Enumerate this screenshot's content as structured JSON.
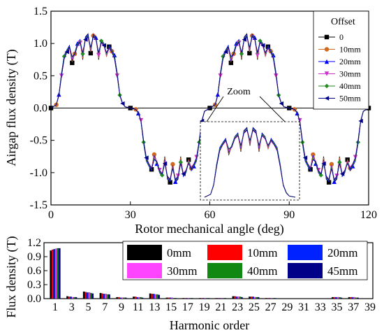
{
  "chart_data": [
    {
      "type": "line",
      "xlabel": "Rotor mechanical angle (deg)",
      "ylabel": "Airgap flux density (T)",
      "xlim": [
        0,
        120
      ],
      "ylim": [
        -1.5,
        1.5
      ],
      "xticks": [
        "0",
        "30",
        "60",
        "90",
        "120"
      ],
      "yticks": [
        "-1.5",
        "-1.0",
        "-0.5",
        "0.0",
        "0.5",
        "1.0",
        "1.5"
      ],
      "legend_title": "Offset",
      "legend_position": "top-right",
      "annotation": "Zoom",
      "x": [
        0,
        2,
        3,
        4,
        5,
        6,
        7,
        8,
        9,
        10,
        11,
        12,
        13,
        14,
        15,
        16,
        17,
        18,
        19,
        20,
        21,
        22,
        23,
        24,
        25,
        26,
        27,
        28,
        30,
        32,
        33,
        34,
        35,
        36,
        37,
        38,
        39,
        40,
        41,
        42,
        43,
        44,
        45,
        46,
        47,
        48,
        49,
        50,
        51,
        52,
        53,
        54,
        55,
        56,
        57,
        58,
        60,
        62,
        63,
        64,
        65,
        66,
        67,
        68,
        69,
        70,
        71,
        72,
        73,
        74,
        75,
        76,
        77,
        78,
        79,
        80,
        81,
        82,
        83,
        84,
        85,
        86,
        87,
        88,
        90,
        92,
        93,
        94,
        95,
        96,
        97,
        98,
        99,
        100,
        101,
        102,
        103,
        104,
        105,
        106,
        107,
        108,
        109,
        110,
        111,
        112,
        113,
        114,
        115,
        116,
        117,
        118,
        120
      ],
      "series": [
        {
          "name": "0",
          "color": "#000000",
          "marker": "square",
          "values": [
            0.0,
            0.05,
            0.2,
            0.55,
            0.8,
            0.9,
            0.95,
            0.7,
            0.85,
            1.0,
            1.05,
            0.75,
            1.1,
            1.15,
            0.85,
            1.15,
            1.1,
            0.75,
            1.05,
            1.0,
            0.8,
            0.95,
            0.9,
            0.8,
            0.55,
            0.2,
            0.08,
            0.02,
            0.0,
            -0.02,
            -0.08,
            -0.2,
            -0.55,
            -0.8,
            -0.9,
            -0.95,
            -0.7,
            -0.85,
            -1.0,
            -1.05,
            -0.75,
            -1.1,
            -1.15,
            -0.85,
            -1.15,
            -1.1,
            -0.75,
            -1.05,
            -1.0,
            -0.8,
            -0.95,
            -0.9,
            -0.8,
            -0.55,
            -0.2,
            -0.05,
            0.0,
            0.05,
            0.2,
            0.55,
            0.8,
            0.9,
            0.95,
            0.7,
            0.85,
            1.0,
            1.05,
            0.75,
            1.1,
            1.15,
            0.85,
            1.15,
            1.1,
            0.75,
            1.05,
            1.0,
            0.8,
            0.95,
            0.9,
            0.8,
            0.55,
            0.2,
            0.08,
            0.02,
            0.0,
            -0.02,
            -0.08,
            -0.2,
            -0.55,
            -0.8,
            -0.9,
            -0.95,
            -0.7,
            -0.85,
            -1.0,
            -1.05,
            -0.75,
            -1.1,
            -1.15,
            -0.85,
            -1.15,
            -1.1,
            -0.75,
            -1.05,
            -1.0,
            -0.8,
            -0.95,
            -0.9,
            -0.8,
            -0.55,
            -0.2,
            -0.05,
            0.0
          ]
        },
        {
          "name": "10mm",
          "color": "#d2691e",
          "marker": "circle",
          "values": [
            0.0,
            0.05,
            0.2,
            0.52,
            0.78,
            0.88,
            0.93,
            0.72,
            0.84,
            0.98,
            1.03,
            0.77,
            1.08,
            1.12,
            0.87,
            1.12,
            1.08,
            0.77,
            1.03,
            0.98,
            0.8,
            0.93,
            0.88,
            0.78,
            0.52,
            0.2,
            0.08,
            0.02,
            0.0,
            -0.02,
            -0.08,
            -0.2,
            -0.52,
            -0.78,
            -0.88,
            -0.93,
            -0.72,
            -0.84,
            -0.98,
            -1.03,
            -0.77,
            -1.08,
            -1.12,
            -0.87,
            -1.12,
            -1.08,
            -0.77,
            -1.03,
            -0.98,
            -0.8,
            -0.93,
            -0.88,
            -0.78,
            -0.52,
            -0.2,
            -0.05,
            0.0,
            0.05,
            0.2,
            0.52,
            0.78,
            0.88,
            0.93,
            0.72,
            0.84,
            0.98,
            1.03,
            0.77,
            1.08,
            1.12,
            0.87,
            1.12,
            1.08,
            0.77,
            1.03,
            0.98,
            0.8,
            0.93,
            0.88,
            0.78,
            0.52,
            0.2,
            0.08,
            0.02,
            0.0,
            -0.02,
            -0.08,
            -0.2,
            -0.52,
            -0.78,
            -0.88,
            -0.93,
            -0.72,
            -0.84,
            -0.98,
            -1.03,
            -0.77,
            -1.08,
            -1.12,
            -0.87,
            -1.12,
            -1.08,
            -0.77,
            -1.03,
            -0.98,
            -0.8,
            -0.93,
            -0.88,
            -0.78,
            -0.52,
            -0.2,
            -0.05,
            0.0
          ]
        },
        {
          "name": "20mm",
          "color": "#0000ff",
          "marker": "triangle-up",
          "values": [
            0.0,
            0.05,
            0.21,
            0.54,
            0.82,
            0.9,
            0.97,
            0.74,
            0.86,
            1.0,
            1.06,
            0.8,
            1.09,
            1.14,
            0.89,
            1.14,
            1.09,
            0.8,
            1.06,
            1.0,
            0.82,
            0.97,
            0.9,
            0.82,
            0.54,
            0.21,
            0.08,
            0.02,
            0.0,
            -0.02,
            -0.08,
            -0.21,
            -0.54,
            -0.82,
            -0.9,
            -0.97,
            -0.74,
            -0.86,
            -1.0,
            -1.06,
            -0.8,
            -1.09,
            -1.14,
            -0.89,
            -1.14,
            -1.09,
            -0.8,
            -1.06,
            -1.0,
            -0.82,
            -0.97,
            -0.9,
            -0.82,
            -0.54,
            -0.21,
            -0.05,
            0.0,
            0.05,
            0.21,
            0.54,
            0.82,
            0.9,
            0.97,
            0.74,
            0.86,
            1.0,
            1.06,
            0.8,
            1.09,
            1.14,
            0.89,
            1.14,
            1.09,
            0.8,
            1.06,
            1.0,
            0.82,
            0.97,
            0.9,
            0.82,
            0.54,
            0.21,
            0.08,
            0.02,
            0.0,
            -0.02,
            -0.08,
            -0.21,
            -0.54,
            -0.82,
            -0.9,
            -0.97,
            -0.74,
            -0.86,
            -1.0,
            -1.06,
            -0.8,
            -1.09,
            -1.14,
            -0.89,
            -1.14,
            -1.09,
            -0.8,
            -1.06,
            -1.0,
            -0.82,
            -0.97,
            -0.9,
            -0.82,
            -0.54,
            -0.21,
            -0.05,
            0.0
          ]
        },
        {
          "name": "30mm",
          "color": "#cc33cc",
          "marker": "triangle-down",
          "values": [
            0.0,
            0.05,
            0.19,
            0.5,
            0.76,
            0.86,
            0.92,
            0.76,
            0.82,
            0.96,
            1.01,
            0.82,
            1.05,
            1.1,
            0.9,
            1.1,
            1.05,
            0.82,
            1.01,
            0.96,
            0.82,
            0.92,
            0.86,
            0.76,
            0.5,
            0.19,
            0.07,
            0.02,
            0.0,
            -0.02,
            -0.07,
            -0.19,
            -0.5,
            -0.76,
            -0.86,
            -0.92,
            -0.76,
            -0.82,
            -0.96,
            -1.01,
            -0.82,
            -1.05,
            -1.1,
            -0.9,
            -1.1,
            -1.05,
            -0.82,
            -1.01,
            -0.96,
            -0.82,
            -0.92,
            -0.86,
            -0.76,
            -0.5,
            -0.19,
            -0.05,
            0.0,
            0.05,
            0.19,
            0.5,
            0.76,
            0.86,
            0.92,
            0.76,
            0.82,
            0.96,
            1.01,
            0.82,
            1.05,
            1.1,
            0.9,
            1.1,
            1.05,
            0.82,
            1.01,
            0.96,
            0.82,
            0.92,
            0.86,
            0.76,
            0.5,
            0.19,
            0.07,
            0.02,
            0.0,
            -0.02,
            -0.07,
            -0.19,
            -0.5,
            -0.76,
            -0.86,
            -0.92,
            -0.76,
            -0.82,
            -0.96,
            -1.01,
            -0.82,
            -1.05,
            -1.1,
            -0.9,
            -1.1,
            -1.05,
            -0.82,
            -1.01,
            -0.96,
            -0.82,
            -0.92,
            -0.86,
            -0.76,
            -0.5,
            -0.19,
            -0.05,
            0.0
          ]
        },
        {
          "name": "40mm",
          "color": "#228b22",
          "marker": "diamond",
          "values": [
            0.0,
            0.05,
            0.2,
            0.53,
            0.8,
            0.89,
            0.95,
            0.78,
            0.85,
            0.99,
            1.04,
            0.84,
            1.07,
            1.12,
            0.92,
            1.12,
            1.07,
            0.84,
            1.04,
            0.99,
            0.84,
            0.95,
            0.89,
            0.8,
            0.53,
            0.2,
            0.08,
            0.02,
            0.0,
            -0.02,
            -0.08,
            -0.2,
            -0.53,
            -0.8,
            -0.89,
            -0.95,
            -0.78,
            -0.85,
            -0.99,
            -1.04,
            -0.84,
            -1.07,
            -1.12,
            -0.92,
            -1.12,
            -1.07,
            -0.84,
            -1.04,
            -0.99,
            -0.84,
            -0.95,
            -0.89,
            -0.8,
            -0.53,
            -0.2,
            -0.05,
            0.0,
            0.05,
            0.2,
            0.53,
            0.8,
            0.89,
            0.95,
            0.78,
            0.85,
            0.99,
            1.04,
            0.84,
            1.07,
            1.12,
            0.92,
            1.12,
            1.07,
            0.84,
            1.04,
            0.99,
            0.84,
            0.95,
            0.89,
            0.8,
            0.53,
            0.2,
            0.08,
            0.02,
            0.0,
            -0.02,
            -0.08,
            -0.2,
            -0.53,
            -0.8,
            -0.89,
            -0.95,
            -0.78,
            -0.85,
            -0.99,
            -1.04,
            -0.84,
            -1.07,
            -1.12,
            -0.92,
            -1.12,
            -1.07,
            -0.84,
            -1.04,
            -0.99,
            -0.84,
            -0.95,
            -0.89,
            -0.8,
            -0.53,
            -0.2,
            -0.05,
            0.0
          ]
        },
        {
          "name": "50mm",
          "color": "#00008b",
          "marker": "triangle-left",
          "values": [
            0.0,
            0.05,
            0.2,
            0.51,
            0.77,
            0.87,
            0.94,
            0.8,
            0.83,
            0.97,
            1.02,
            0.86,
            1.06,
            1.11,
            0.94,
            1.11,
            1.06,
            0.86,
            1.02,
            0.97,
            0.86,
            0.94,
            0.87,
            0.77,
            0.51,
            0.2,
            0.07,
            0.02,
            0.0,
            -0.02,
            -0.07,
            -0.2,
            -0.51,
            -0.77,
            -0.87,
            -0.94,
            -0.8,
            -0.83,
            -0.97,
            -1.02,
            -0.86,
            -1.06,
            -1.11,
            -0.94,
            -1.11,
            -1.06,
            -0.86,
            -1.02,
            -0.97,
            -0.86,
            -0.94,
            -0.87,
            -0.77,
            -0.51,
            -0.2,
            -0.05,
            0.0,
            0.05,
            0.2,
            0.51,
            0.77,
            0.87,
            0.94,
            0.8,
            0.83,
            0.97,
            1.02,
            0.86,
            1.06,
            1.11,
            0.94,
            1.11,
            1.06,
            0.86,
            1.02,
            0.97,
            0.86,
            0.94,
            0.87,
            0.77,
            0.51,
            0.2,
            0.07,
            0.02,
            0.0,
            -0.02,
            -0.07,
            -0.2,
            -0.51,
            -0.77,
            -0.87,
            -0.94,
            -0.8,
            -0.83,
            -0.97,
            -1.02,
            -0.86,
            -1.06,
            -1.11,
            -0.94,
            -1.11,
            -1.06,
            -0.86,
            -1.02,
            -0.97,
            -0.86,
            -0.94,
            -0.87,
            -0.77,
            -0.51,
            -0.2,
            -0.05,
            0.0
          ]
        }
      ]
    },
    {
      "type": "bar",
      "xlabel": "Harmonic order",
      "ylabel": "Flux density (T)",
      "ylim": [
        0,
        1.2
      ],
      "yticks": [
        "0.0",
        "0.3",
        "0.6",
        "0.9",
        "1.2"
      ],
      "legend_position": "top-right",
      "categories": [
        "1",
        "3",
        "5",
        "7",
        "9",
        "11",
        "13",
        "15",
        "17",
        "19",
        "21",
        "23",
        "25",
        "27",
        "29",
        "31",
        "33",
        "35",
        "37",
        "39"
      ],
      "series": [
        {
          "name": "0mm",
          "color": "#000000",
          "values": [
            1.03,
            0.05,
            0.15,
            0.12,
            0.03,
            0.04,
            0.11,
            0.02,
            0.01,
            0.01,
            0.01,
            0.05,
            0.04,
            0.01,
            0.0,
            0.0,
            0.0,
            0.03,
            0.03,
            0.0
          ]
        },
        {
          "name": "10mm",
          "color": "#ff0000",
          "values": [
            1.05,
            0.04,
            0.14,
            0.11,
            0.03,
            0.04,
            0.1,
            0.02,
            0.01,
            0.01,
            0.01,
            0.05,
            0.04,
            0.01,
            0.0,
            0.0,
            0.0,
            0.03,
            0.03,
            0.0
          ]
        },
        {
          "name": "20mm",
          "color": "#0022ff",
          "values": [
            1.06,
            0.04,
            0.13,
            0.1,
            0.02,
            0.03,
            0.1,
            0.02,
            0.01,
            0.01,
            0.01,
            0.04,
            0.04,
            0.01,
            0.0,
            0.0,
            0.0,
            0.03,
            0.03,
            0.0
          ]
        },
        {
          "name": "30mm",
          "color": "#ff44ff",
          "values": [
            1.07,
            0.03,
            0.13,
            0.1,
            0.02,
            0.03,
            0.09,
            0.02,
            0.01,
            0.01,
            0.01,
            0.04,
            0.03,
            0.01,
            0.0,
            0.0,
            0.0,
            0.03,
            0.03,
            0.0
          ]
        },
        {
          "name": "40mm",
          "color": "#118811",
          "values": [
            1.08,
            0.03,
            0.12,
            0.09,
            0.02,
            0.03,
            0.09,
            0.01,
            0.01,
            0.01,
            0.01,
            0.04,
            0.03,
            0.01,
            0.0,
            0.0,
            0.0,
            0.03,
            0.02,
            0.0
          ]
        },
        {
          "name": "45mm",
          "color": "#000088",
          "values": [
            1.08,
            0.03,
            0.11,
            0.09,
            0.02,
            0.02,
            0.08,
            0.01,
            0.01,
            0.01,
            0.01,
            0.03,
            0.03,
            0.01,
            0.0,
            0.0,
            0.0,
            0.02,
            0.02,
            0.0
          ]
        }
      ]
    }
  ]
}
